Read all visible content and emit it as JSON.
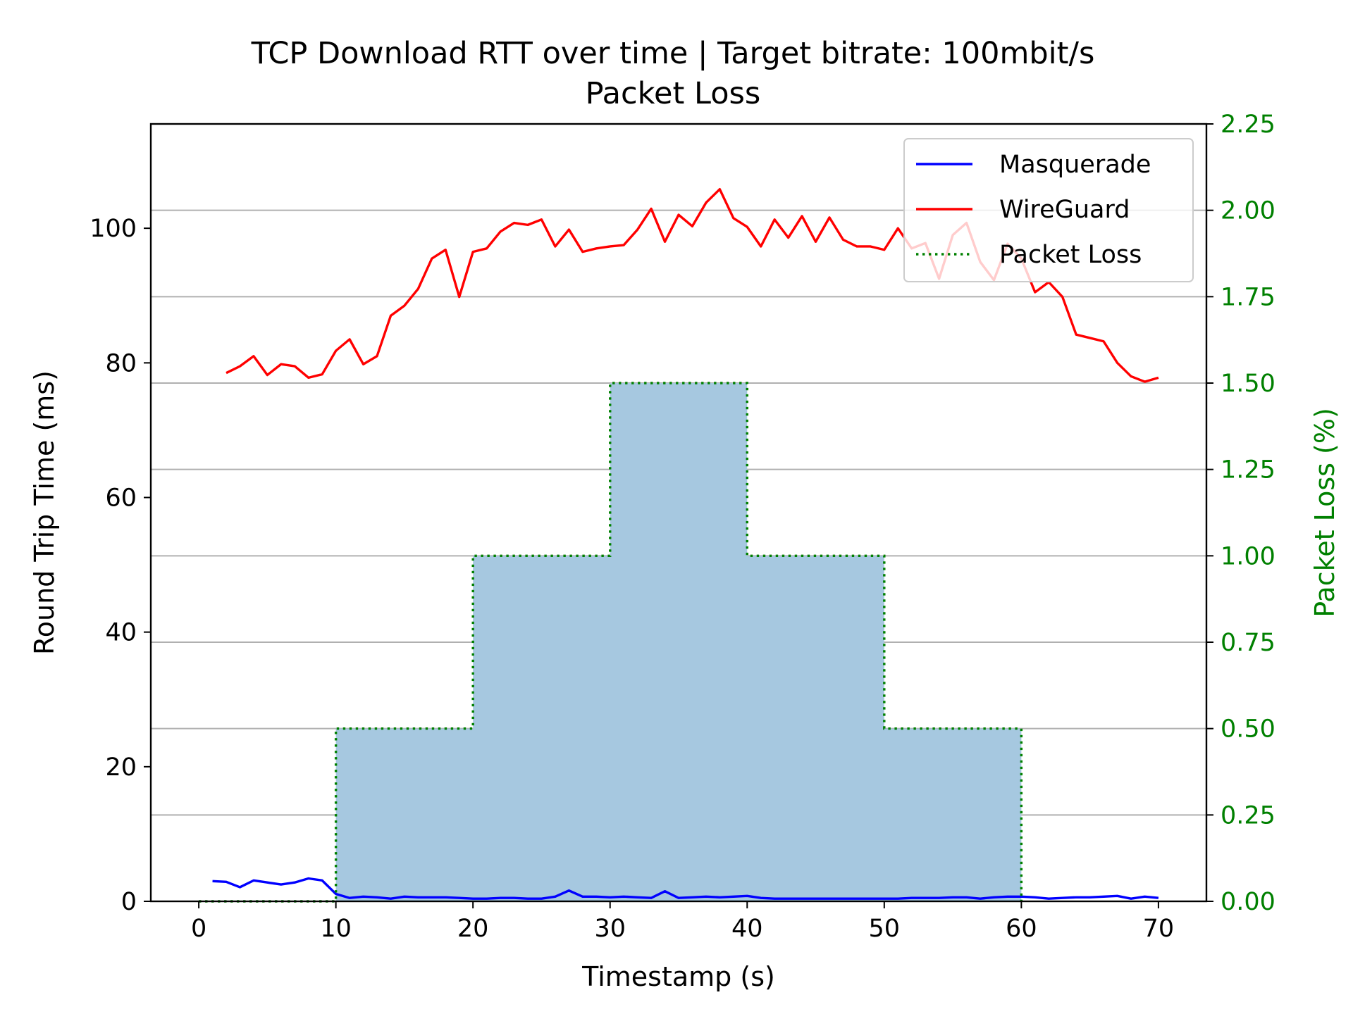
{
  "chart_data": {
    "type": "line",
    "title": "TCP Download RTT over time | Target bitrate: 100mbit/s",
    "subtitle": "Packet Loss",
    "xlabel": "Timestamp (s)",
    "ylabel": "Round Trip Time (ms)",
    "ylabel_right": "Packet Loss (%)",
    "xlim": [
      -3.5,
      73.5
    ],
    "ylim": [
      0,
      115.5
    ],
    "ylim_right": [
      0,
      2.25
    ],
    "x_ticks": [
      "0",
      "10",
      "20",
      "30",
      "40",
      "50",
      "60",
      "70"
    ],
    "y_ticks": [
      "0",
      "20",
      "40",
      "60",
      "80",
      "100"
    ],
    "y_ticks_right": [
      "0.00",
      "0.25",
      "0.50",
      "0.75",
      "1.00",
      "1.25",
      "1.50",
      "1.75",
      "2.00",
      "2.25"
    ],
    "grid": "horizontal lines at right-axis ticks",
    "legend_position": "top-right",
    "colors": {
      "masquerade": "#0000ff",
      "wireguard": "#ff0000",
      "packet_loss_line": "#008000",
      "packet_loss_fill": "#a6c8e0",
      "right_axis": "#008000"
    },
    "series": [
      {
        "name": "Masquerade",
        "axis": "left",
        "x": [
          1,
          2,
          3,
          4,
          5,
          6,
          7,
          8,
          9,
          10,
          11,
          12,
          13,
          14,
          15,
          16,
          17,
          18,
          19,
          20,
          21,
          22,
          23,
          24,
          25,
          26,
          27,
          28,
          29,
          30,
          31,
          32,
          33,
          34,
          35,
          36,
          37,
          38,
          39,
          40,
          41,
          42,
          43,
          44,
          45,
          46,
          47,
          48,
          49,
          50,
          51,
          52,
          53,
          54,
          55,
          56,
          57,
          58,
          59,
          60,
          61,
          62,
          63,
          64,
          65,
          66,
          67,
          68,
          69,
          70
        ],
        "values": [
          3.0,
          2.9,
          2.1,
          3.1,
          2.8,
          2.5,
          2.8,
          3.4,
          3.1,
          1.1,
          0.5,
          0.7,
          0.6,
          0.4,
          0.7,
          0.6,
          0.6,
          0.6,
          0.5,
          0.4,
          0.4,
          0.5,
          0.5,
          0.4,
          0.4,
          0.7,
          1.6,
          0.7,
          0.7,
          0.6,
          0.7,
          0.6,
          0.5,
          1.5,
          0.5,
          0.6,
          0.7,
          0.6,
          0.7,
          0.8,
          0.5,
          0.4,
          0.4,
          0.4,
          0.4,
          0.4,
          0.4,
          0.4,
          0.4,
          0.4,
          0.4,
          0.5,
          0.5,
          0.5,
          0.6,
          0.6,
          0.4,
          0.6,
          0.7,
          0.7,
          0.6,
          0.4,
          0.5,
          0.6,
          0.6,
          0.7,
          0.8,
          0.4,
          0.7,
          0.5
        ]
      },
      {
        "name": "WireGuard",
        "axis": "left",
        "x": [
          2,
          3,
          4,
          5,
          6,
          7,
          8,
          9,
          10,
          11,
          12,
          13,
          14,
          15,
          16,
          17,
          18,
          19,
          20,
          21,
          22,
          23,
          24,
          25,
          26,
          27,
          28,
          29,
          30,
          31,
          32,
          33,
          34,
          35,
          36,
          37,
          38,
          39,
          40,
          41,
          42,
          43,
          44,
          45,
          46,
          47,
          48,
          49,
          50,
          51,
          52,
          53,
          54,
          55,
          56,
          57,
          58,
          59,
          60,
          61,
          62,
          63,
          64,
          65,
          66,
          67,
          68,
          69,
          70
        ],
        "values": [
          78.5,
          79.5,
          81.0,
          78.2,
          79.8,
          79.5,
          77.8,
          78.3,
          81.8,
          83.5,
          79.8,
          81.0,
          87.0,
          88.5,
          91.0,
          95.5,
          96.8,
          89.8,
          96.5,
          97.0,
          99.5,
          100.8,
          100.5,
          101.3,
          97.3,
          99.8,
          96.5,
          97.0,
          97.3,
          97.5,
          99.8,
          102.9,
          98.0,
          102.0,
          100.3,
          103.8,
          105.8,
          101.5,
          100.2,
          97.3,
          101.3,
          98.6,
          101.8,
          98.0,
          101.6,
          98.3,
          97.3,
          97.3,
          96.8,
          100.0,
          97.0,
          97.8,
          92.5,
          99.0,
          100.8,
          95.0,
          92.3,
          97.7,
          95.5,
          90.5,
          92.0,
          89.8,
          84.2,
          83.7,
          83.2,
          80.0,
          78.0,
          77.2,
          77.8
        ]
      },
      {
        "name": "Packet Loss",
        "axis": "right",
        "step": "post",
        "x": [
          0,
          10,
          20,
          30,
          40,
          50,
          60
        ],
        "values": [
          0.0,
          0.5,
          1.0,
          1.5,
          1.0,
          0.5,
          0.0
        ]
      }
    ]
  }
}
